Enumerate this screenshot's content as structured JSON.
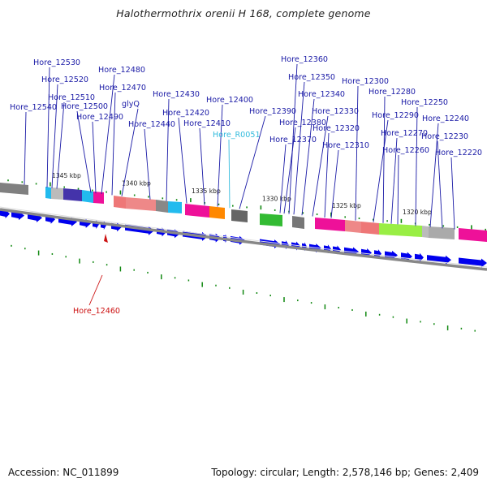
{
  "title": "Halothermothrix orenii H 168, complete genome",
  "footer": {
    "accession": "Accession: NC_011899",
    "summary": "Topology: circular; Length: 2,578,146 bp; Genes: 2,409"
  },
  "kbp_labels": [
    {
      "kbp": 1345,
      "text": "1345 kbp"
    },
    {
      "kbp": 1340,
      "text": "1340 kbp"
    },
    {
      "kbp": 1335,
      "text": "1335 kbp"
    },
    {
      "kbp": 1330,
      "text": "1330 kbp"
    },
    {
      "kbp": 1325,
      "text": "1325 kbp"
    },
    {
      "kbp": 1320,
      "text": "1320 kbp"
    }
  ],
  "gene_labels": [
    {
      "text": "Hore_12530",
      "kind": "cds"
    },
    {
      "text": "Hore_12520",
      "kind": "cds"
    },
    {
      "text": "Hore_12510",
      "kind": "cds"
    },
    {
      "text": "Hore_12500",
      "kind": "cds"
    },
    {
      "text": "Hore_12490",
      "kind": "cds"
    },
    {
      "text": "Hore_12540",
      "kind": "cds"
    },
    {
      "text": "Hore_12480",
      "kind": "cds"
    },
    {
      "text": "Hore_12470",
      "kind": "cds"
    },
    {
      "text": "glyQ",
      "kind": "cds"
    },
    {
      "text": "Hore_12440",
      "kind": "cds"
    },
    {
      "text": "Hore_12430",
      "kind": "cds"
    },
    {
      "text": "Hore_12420",
      "kind": "cds"
    },
    {
      "text": "Hore_12410",
      "kind": "cds"
    },
    {
      "text": "Hore_12400",
      "kind": "cds"
    },
    {
      "text": "Hore_R0051",
      "kind": "rna"
    },
    {
      "text": "Hore_12390",
      "kind": "cds"
    },
    {
      "text": "Hore_12360",
      "kind": "cds"
    },
    {
      "text": "Hore_12350",
      "kind": "cds"
    },
    {
      "text": "Hore_12340",
      "kind": "cds"
    },
    {
      "text": "Hore_12380",
      "kind": "cds"
    },
    {
      "text": "Hore_12370",
      "kind": "cds"
    },
    {
      "text": "Hore_12330",
      "kind": "cds"
    },
    {
      "text": "Hore_12320",
      "kind": "cds"
    },
    {
      "text": "Hore_12310",
      "kind": "cds"
    },
    {
      "text": "Hore_12300",
      "kind": "cds"
    },
    {
      "text": "Hore_12290",
      "kind": "cds"
    },
    {
      "text": "Hore_12280",
      "kind": "cds"
    },
    {
      "text": "Hore_12270",
      "kind": "cds"
    },
    {
      "text": "Hore_12260",
      "kind": "cds"
    },
    {
      "text": "Hore_12250",
      "kind": "cds"
    },
    {
      "text": "Hore_12240",
      "kind": "cds"
    },
    {
      "text": "Hore_12230",
      "kind": "cds"
    },
    {
      "text": "Hore_12220",
      "kind": "cds"
    },
    {
      "text": "Hore_12460",
      "kind": "reverse"
    }
  ],
  "colors": {
    "cds_forward": "#0000ee",
    "backbone": "#808080",
    "tick": "#118811",
    "rna_label": "#33bbdd",
    "reverse_label": "#cc1111",
    "label": "#1a1aa6"
  }
}
